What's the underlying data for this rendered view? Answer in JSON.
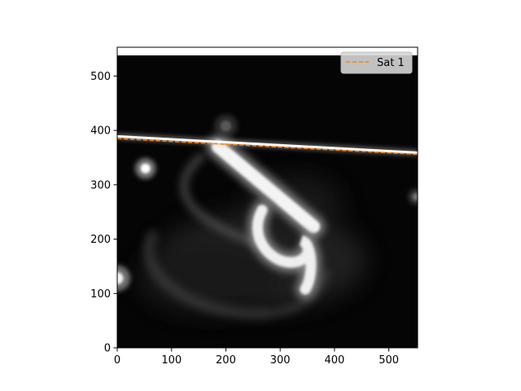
{
  "chart_data": {
    "type": "image",
    "colormap": "gray",
    "xlim": [
      0,
      553
    ],
    "ylim": [
      0,
      553
    ],
    "image_extent": {
      "x": [
        0,
        553
      ],
      "y": [
        0,
        538
      ]
    },
    "x_ticks": [
      0,
      100,
      200,
      300,
      400,
      500
    ],
    "y_ticks": [
      0,
      100,
      200,
      300,
      400,
      500
    ],
    "x_tick_labels": [
      "0",
      "100",
      "200",
      "300",
      "400",
      "500"
    ],
    "y_tick_labels": [
      "0",
      "100",
      "200",
      "300",
      "400",
      "500"
    ],
    "grid": false,
    "legend_position": "upper-right",
    "series": [
      {
        "name": "Sat 1",
        "style": "dashed",
        "color": "#ff7f0e",
        "x": [
          0,
          553
        ],
        "y": [
          385,
          356
        ]
      }
    ],
    "bright_trail": {
      "x": [
        0,
        553
      ],
      "y": [
        389,
        359
      ]
    },
    "sources": [
      {
        "x": 52,
        "y": 330,
        "r": 8,
        "brightness": 1.0
      },
      {
        "x": 0,
        "y": 128,
        "r": 10,
        "brightness": 0.95
      },
      {
        "x": 550,
        "y": 278,
        "r": 6,
        "brightness": 0.45
      },
      {
        "x": 200,
        "y": 408,
        "r": 9,
        "brightness": 0.35
      }
    ]
  }
}
